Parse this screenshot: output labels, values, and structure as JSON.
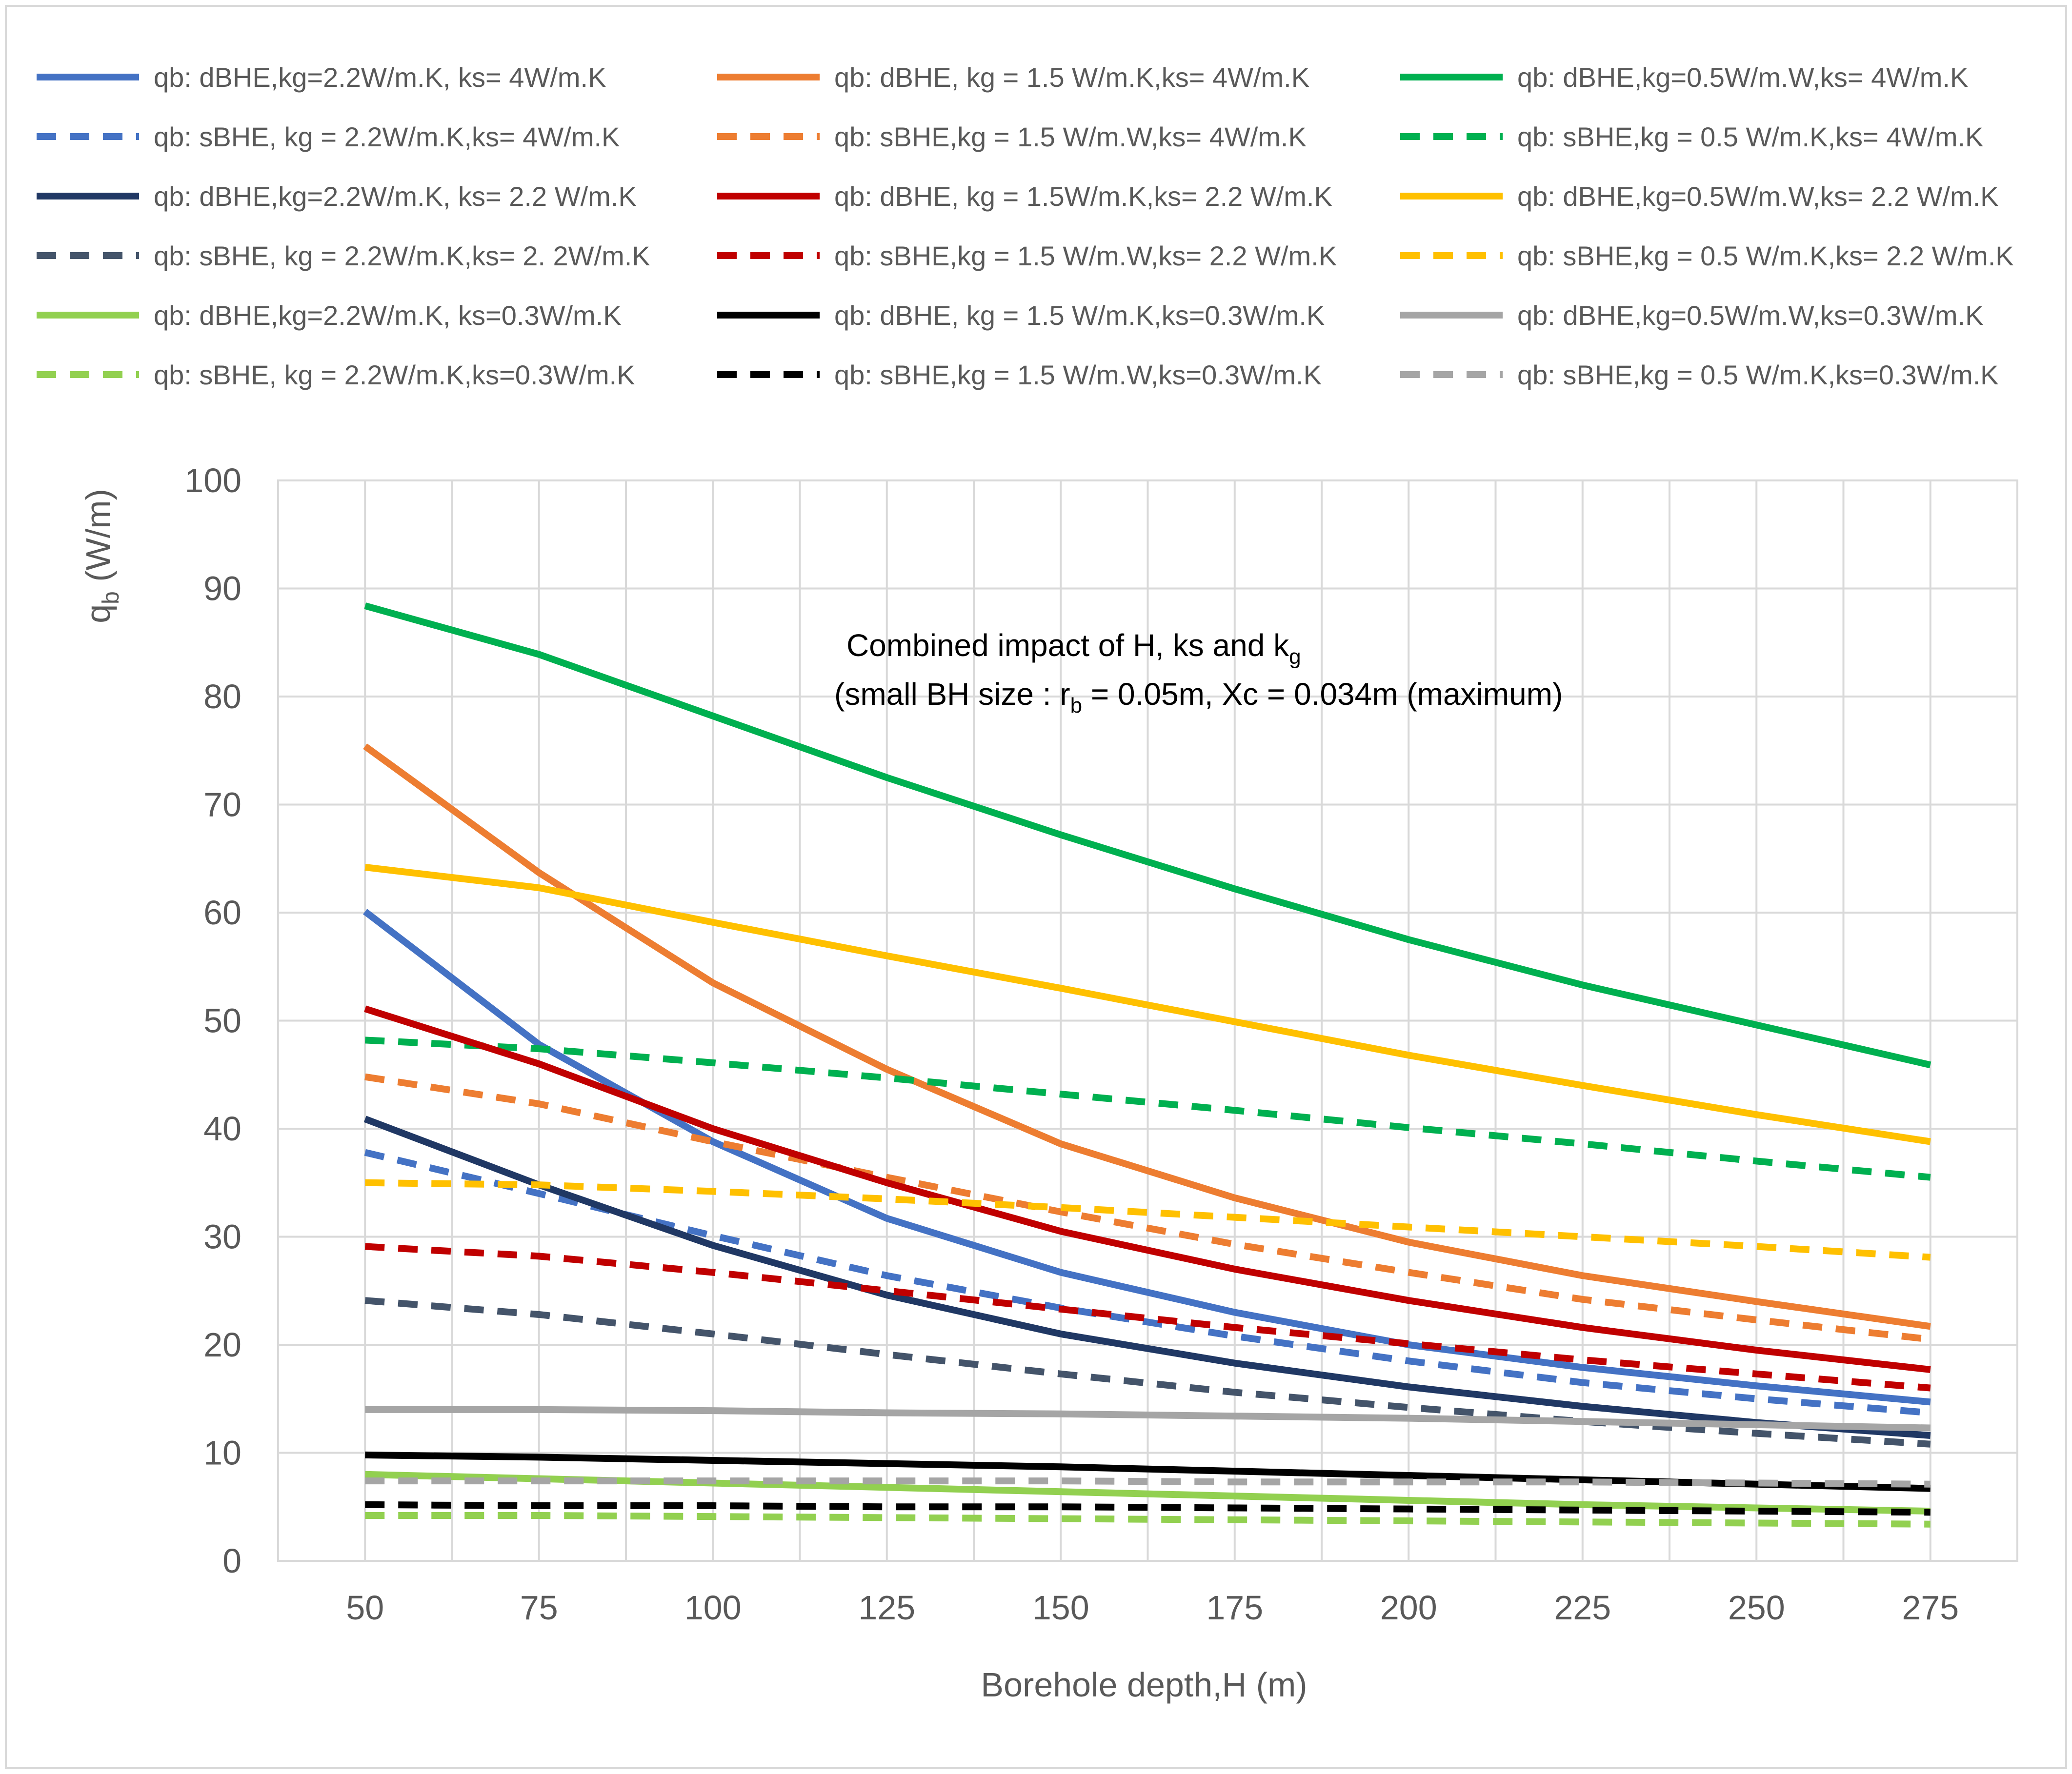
{
  "chart_data": {
    "type": "line",
    "annotation": {
      "line1_main": "Combined impact of H, ks and k",
      "line1_sub": "g",
      "line2_pre": "(small BH size : r",
      "line2_sub": "b",
      "line2_post": " = 0.05m, Xc = 0.034m (maximum)"
    },
    "xlabel": "Borehole depth,H (m)",
    "ylabel_main": "q",
    "ylabel_sub": "b",
    "ylabel_rest": " (W/m)",
    "x": [
      50,
      75,
      100,
      125,
      150,
      175,
      200,
      225,
      250,
      275
    ],
    "x_tick_labels": [
      "50",
      "75",
      "100",
      "125",
      "150",
      "175",
      "200",
      "225",
      "250",
      "275"
    ],
    "xlim": [
      37.5,
      287.5
    ],
    "ylim": [
      0,
      100
    ],
    "y_ticks": [
      0,
      10,
      20,
      30,
      40,
      50,
      60,
      70,
      80,
      90,
      100
    ],
    "y_tick_labels": [
      "0",
      "10",
      "20",
      "30",
      "40",
      "50",
      "60",
      "70",
      "80",
      "90",
      "100"
    ],
    "grid": true,
    "legend_position": "top",
    "series": [
      {
        "name": "qb: dBHE,kg=2.2W/m.K, ks= 4W/m.K",
        "color": "#4472C4",
        "dash": "solid",
        "values": [
          60.1,
          47.8,
          38.8,
          31.7,
          26.7,
          23.0,
          20.0,
          17.9,
          16.2,
          14.7
        ]
      },
      {
        "name": "qb: dBHE, kg = 1.5 W/m.K,ks= 4W/m.K",
        "color": "#ED7D31",
        "dash": "solid",
        "values": [
          75.4,
          63.7,
          53.5,
          45.5,
          38.6,
          33.6,
          29.5,
          26.4,
          24.0,
          21.7
        ]
      },
      {
        "name": "qb: dBHE,kg=0.5W/m.W,ks= 4W/m.K",
        "color": "#00B050",
        "dash": "solid",
        "values": [
          88.4,
          83.9,
          78.2,
          72.5,
          67.2,
          62.2,
          57.5,
          53.3,
          49.6,
          45.9
        ]
      },
      {
        "name": "qb: sBHE, kg = 2.2W/m.K,ks= 4W/m.K",
        "color": "#4472C4",
        "dash": "dashed",
        "values": [
          37.8,
          34.0,
          30.1,
          26.4,
          23.4,
          20.8,
          18.5,
          16.5,
          15.0,
          13.7
        ]
      },
      {
        "name": "qb: sBHE,kg = 1.5 W/m.W,ks= 4W/m.K",
        "color": "#ED7D31",
        "dash": "dashed",
        "values": [
          44.8,
          42.3,
          38.8,
          35.5,
          32.3,
          29.3,
          26.7,
          24.2,
          22.3,
          20.5
        ]
      },
      {
        "name": "qb: sBHE,kg = 0.5 W/m.K,ks= 4W/m.K",
        "color": "#00B050",
        "dash": "dashed",
        "values": [
          48.2,
          47.4,
          46.1,
          44.7,
          43.2,
          41.7,
          40.1,
          38.6,
          37.0,
          35.5
        ]
      },
      {
        "name": "qb: dBHE,kg=2.2W/m.K, ks= 2.2 W/m.K",
        "color": "#203864",
        "dash": "solid",
        "values": [
          40.9,
          34.8,
          29.2,
          24.6,
          21.0,
          18.3,
          16.1,
          14.3,
          12.8,
          11.6
        ]
      },
      {
        "name": "qb: dBHE, kg = 1.5W/m.K,ks= 2.2 W/m.K",
        "color": "#C00000",
        "dash": "solid",
        "values": [
          51.1,
          46.0,
          40.0,
          35.0,
          30.5,
          27.0,
          24.1,
          21.6,
          19.5,
          17.7
        ]
      },
      {
        "name": "qb: dBHE,kg=0.5W/m.W,ks= 2.2 W/m.K",
        "color": "#FFC000",
        "dash": "solid",
        "values": [
          64.2,
          62.3,
          59.1,
          56.0,
          53.0,
          49.9,
          46.8,
          44.0,
          41.3,
          38.8
        ]
      },
      {
        "name": "qb: sBHE, kg = 2.2W/m.K,ks= 2. 2W/m.K",
        "color": "#44546A",
        "dash": "dashed",
        "values": [
          24.1,
          22.8,
          21.0,
          19.1,
          17.3,
          15.6,
          14.2,
          12.9,
          11.8,
          10.8
        ]
      },
      {
        "name": "qb: sBHE,kg = 1.5 W/m.W,ks= 2.2 W/m.K",
        "color": "#C00000",
        "dash": "dashed",
        "values": [
          29.1,
          28.2,
          26.7,
          25.0,
          23.3,
          21.6,
          20.1,
          18.6,
          17.3,
          16.0
        ]
      },
      {
        "name": "qb: sBHE,kg = 0.5 W/m.K,ks= 2.2 W/m.K",
        "color": "#FFC000",
        "dash": "dashed",
        "values": [
          35.0,
          34.8,
          34.2,
          33.5,
          32.7,
          31.8,
          30.9,
          30.0,
          29.1,
          28.1
        ]
      },
      {
        "name": "qb: dBHE,kg=2.2W/m.K, ks=0.3W/m.K",
        "color": "#92D050",
        "dash": "solid",
        "values": [
          8.0,
          7.6,
          7.2,
          6.8,
          6.4,
          6.0,
          5.6,
          5.2,
          4.9,
          4.6
        ]
      },
      {
        "name": "qb: dBHE, kg = 1.5 W/m.K,ks=0.3W/m.K",
        "color": "#000000",
        "dash": "solid",
        "values": [
          9.8,
          9.6,
          9.3,
          9.0,
          8.7,
          8.3,
          7.9,
          7.5,
          7.1,
          6.7
        ]
      },
      {
        "name": "qb: dBHE,kg=0.5W/m.W,ks=0.3W/m.K",
        "color": "#A5A5A5",
        "dash": "solid",
        "values": [
          14.0,
          14.0,
          13.9,
          13.7,
          13.6,
          13.4,
          13.2,
          12.9,
          12.6,
          12.3
        ]
      },
      {
        "name": "qb: sBHE, kg = 2.2W/m.K,ks=0.3W/m.K",
        "color": "#92D050",
        "dash": "dashed",
        "values": [
          4.2,
          4.2,
          4.1,
          4.0,
          3.9,
          3.8,
          3.7,
          3.6,
          3.5,
          3.4
        ]
      },
      {
        "name": "qb: sBHE,kg = 1.5 W/m.W,ks=0.3W/m.K",
        "color": "#000000",
        "dash": "dashed",
        "values": [
          5.2,
          5.1,
          5.1,
          5.0,
          5.0,
          4.9,
          4.8,
          4.7,
          4.6,
          4.5
        ]
      },
      {
        "name": "qb: sBHE,kg = 0.5 W/m.K,ks=0.3W/m.K",
        "color": "#A5A5A5",
        "dash": "dashed",
        "values": [
          7.4,
          7.4,
          7.4,
          7.4,
          7.4,
          7.3,
          7.3,
          7.3,
          7.2,
          7.1
        ]
      }
    ]
  }
}
